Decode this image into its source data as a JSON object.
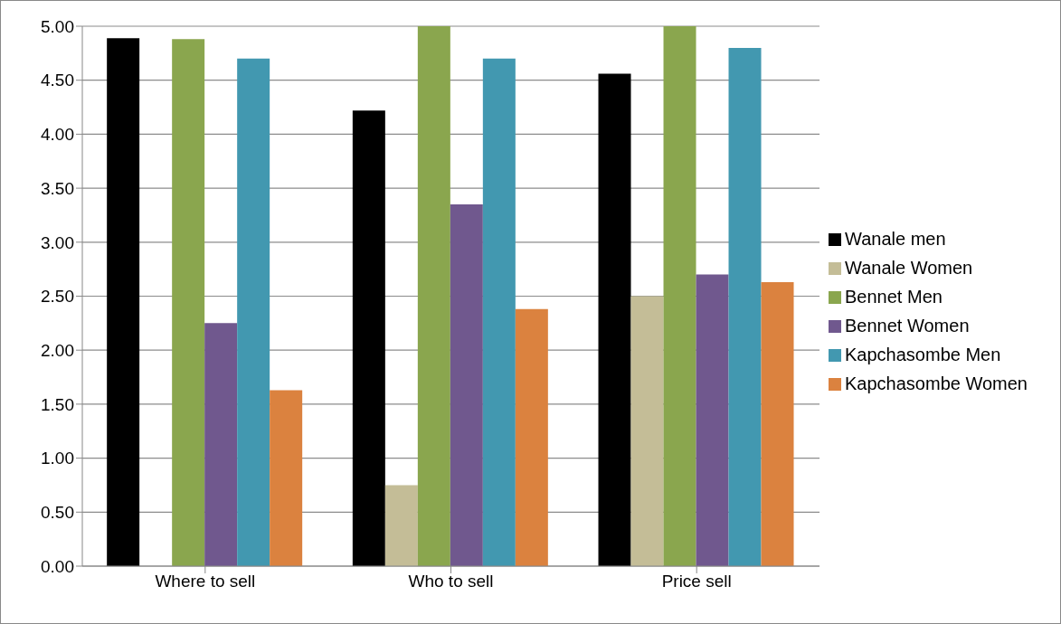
{
  "chart_data": {
    "type": "bar",
    "categories": [
      "Where to sell",
      "Who to sell",
      "Price sell"
    ],
    "series": [
      {
        "name": "Wanale men",
        "color": "#000000",
        "values": [
          4.89,
          4.22,
          4.56
        ]
      },
      {
        "name": "Wanale Women",
        "color": "#c4bd97",
        "values": [
          0,
          0.75,
          2.5
        ]
      },
      {
        "name": "Bennet Men",
        "color": "#8aa64e",
        "values": [
          4.88,
          5.0,
          5.0
        ]
      },
      {
        "name": "Bennet Women",
        "color": "#70588e",
        "values": [
          2.25,
          3.35,
          2.7
        ]
      },
      {
        "name": "Kapchasombe Men",
        "color": "#4298b0",
        "values": [
          4.7,
          4.7,
          4.8
        ]
      },
      {
        "name": "Kapchasombe Women",
        "color": "#db823f",
        "values": [
          1.63,
          2.38,
          2.63
        ]
      }
    ],
    "ylim": [
      0,
      5
    ],
    "yticks": [
      {
        "value": 0,
        "label": "0.00"
      },
      {
        "value": 0.5,
        "label": "0.50"
      },
      {
        "value": 1,
        "label": "1.00"
      },
      {
        "value": 1.5,
        "label": "1.50"
      },
      {
        "value": 2,
        "label": "2.00"
      },
      {
        "value": 2.5,
        "label": "2.50"
      },
      {
        "value": 3,
        "label": "3.00"
      },
      {
        "value": 3.5,
        "label": "3.50"
      },
      {
        "value": 4,
        "label": "4.00"
      },
      {
        "value": 4.5,
        "label": "4.50"
      },
      {
        "value": 5,
        "label": "5.00"
      }
    ],
    "grid": "y",
    "legend": "right"
  }
}
